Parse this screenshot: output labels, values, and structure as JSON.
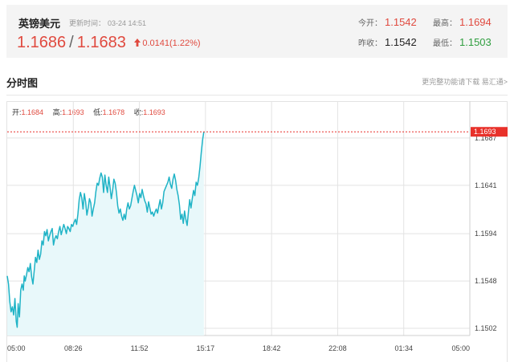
{
  "header": {
    "pair": "英镑美元",
    "update_label": "更新时间：",
    "update_time": "03-24 14:51",
    "bid": "1.1686",
    "separator": "/",
    "ask": "1.1683",
    "change": "0.0141(1.22%)",
    "stats": {
      "open_label": "今开：",
      "open": "1.1542",
      "high_label": "最高：",
      "high": "1.1694",
      "prev_close_label": "昨收：",
      "prev_close": "1.1542",
      "low_label": "最低：",
      "low": "1.1503"
    }
  },
  "section": {
    "title": "分时图",
    "link": "更完整功能请下载 易汇通>"
  },
  "ohlc": {
    "open_label": "开:",
    "open": "1.1684",
    "high_label": "高:",
    "high": "1.1693",
    "low_label": "低:",
    "low": "1.1678",
    "close_label": "收:",
    "close": "1.1693"
  },
  "colors": {
    "up": "#e04a3f",
    "down": "#2f9e3f",
    "line": "#1fb3c6",
    "area": "#e8f8fa",
    "current_price_tag": "#e8312a"
  },
  "chart_data": {
    "type": "area",
    "x_ticks": [
      "05:00",
      "08:26",
      "11:52",
      "15:17",
      "18:42",
      "22:08",
      "01:34",
      "05:00"
    ],
    "y_ticks": [
      "1.1687",
      "1.1641",
      "1.1594",
      "1.1548",
      "1.1502"
    ],
    "current_price": "1.1693",
    "x_units": "minutes since 05:00",
    "ylim": [
      1.1495,
      1.1708
    ],
    "x": [
      0,
      4,
      8,
      12,
      16,
      20,
      24,
      28,
      31,
      34,
      38,
      42,
      46,
      50,
      53,
      56,
      60,
      64,
      68,
      72,
      76,
      80,
      84,
      88,
      92,
      96,
      100,
      104,
      108,
      112,
      116,
      120,
      124,
      128,
      132,
      136,
      140,
      144,
      148,
      152,
      156,
      160,
      164,
      168,
      172,
      176,
      180,
      184,
      188,
      192,
      196,
      200,
      204,
      208,
      212,
      216,
      220,
      224,
      228,
      232,
      236,
      240,
      244,
      248,
      252,
      256,
      260,
      264,
      268,
      272,
      276,
      280,
      284,
      288,
      292,
      296,
      300,
      304,
      308,
      312,
      316,
      320,
      324,
      328,
      332,
      336,
      340,
      344,
      348,
      352,
      356,
      360,
      364,
      368,
      372,
      376,
      380,
      384,
      388,
      392,
      396,
      400,
      404,
      408,
      412,
      416,
      420,
      424,
      428,
      432,
      436,
      440,
      444,
      448,
      452,
      456,
      460,
      464,
      468,
      472,
      476,
      480,
      484,
      488,
      492,
      496,
      500,
      504,
      508,
      512,
      516,
      520,
      524,
      528,
      532,
      536,
      540,
      544,
      548,
      552,
      556,
      560,
      564,
      568,
      572,
      576,
      580,
      584,
      588,
      592,
      596,
      600,
      604,
      608,
      612
    ],
    "values": [
      1.1553,
      1.1545,
      1.1528,
      1.1518,
      1.1523,
      1.1515,
      1.1531,
      1.1509,
      1.1503,
      1.1526,
      1.1513,
      1.1539,
      1.1545,
      1.1539,
      1.1553,
      1.1548,
      1.1554,
      1.1561,
      1.1557,
      1.1565,
      1.1552,
      1.1545,
      1.1558,
      1.1571,
      1.1566,
      1.1578,
      1.1569,
      1.1574,
      1.1587,
      1.1583,
      1.1596,
      1.1592,
      1.1598,
      1.1587,
      1.1592,
      1.1596,
      1.1599,
      1.1583,
      1.1589,
      1.1592,
      1.1589,
      1.1596,
      1.1601,
      1.1593,
      1.1598,
      1.1603,
      1.1599,
      1.1594,
      1.1601,
      1.1599,
      1.1596,
      1.1603,
      1.1601,
      1.1605,
      1.1608,
      1.1603,
      1.1613,
      1.1627,
      1.1634,
      1.1629,
      1.1618,
      1.1633,
      1.1625,
      1.1612,
      1.1619,
      1.1628,
      1.1624,
      1.1611,
      1.1618,
      1.1624,
      1.1635,
      1.1643,
      1.1641,
      1.1648,
      1.1653,
      1.1649,
      1.1634,
      1.1651,
      1.1641,
      1.1634,
      1.1649,
      1.1639,
      1.1628,
      1.1636,
      1.1647,
      1.1643,
      1.1634,
      1.1621,
      1.1614,
      1.1618,
      1.1611,
      1.1607,
      1.1613,
      1.1608,
      1.1618,
      1.1624,
      1.1618,
      1.1621,
      1.1628,
      1.1635,
      1.1641,
      1.1636,
      1.1631,
      1.1624,
      1.1633,
      1.1629,
      1.1637,
      1.1631,
      1.1626,
      1.1623,
      1.1615,
      1.1625,
      1.1619,
      1.1613,
      1.1615,
      1.1611,
      1.1615,
      1.1618,
      1.1614,
      1.1621,
      1.1627,
      1.1618,
      1.1624,
      1.1635,
      1.1638,
      1.1641,
      1.1644,
      1.1649,
      1.1642,
      1.1638,
      1.1647,
      1.1652,
      1.1646,
      1.1637,
      1.1631,
      1.1622,
      1.1608,
      1.1613,
      1.1604,
      1.1616,
      1.1608,
      1.1602,
      1.1615,
      1.1627,
      1.1619,
      1.1628,
      1.1636,
      1.1631,
      1.1644,
      1.1641,
      1.1648,
      1.1659,
      1.1673,
      1.1685,
      1.1693
    ]
  }
}
